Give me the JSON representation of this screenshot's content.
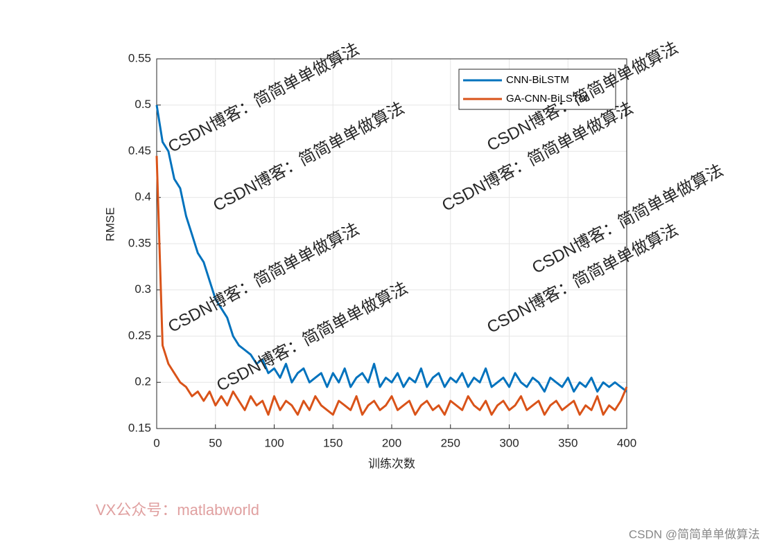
{
  "chart_data": {
    "type": "line",
    "xlabel": "训练次数",
    "ylabel": "RMSE",
    "x": [
      0,
      5,
      10,
      15,
      20,
      25,
      30,
      35,
      40,
      45,
      50,
      55,
      60,
      65,
      70,
      75,
      80,
      85,
      90,
      95,
      100,
      105,
      110,
      115,
      120,
      125,
      130,
      135,
      140,
      145,
      150,
      155,
      160,
      165,
      170,
      175,
      180,
      185,
      190,
      195,
      200,
      205,
      210,
      215,
      220,
      225,
      230,
      235,
      240,
      245,
      250,
      255,
      260,
      265,
      270,
      275,
      280,
      285,
      290,
      295,
      300,
      305,
      310,
      315,
      320,
      325,
      330,
      335,
      340,
      345,
      350,
      355,
      360,
      365,
      370,
      375,
      380,
      385,
      390,
      395,
      400
    ],
    "series": [
      {
        "name": "CNN-BiLSTM",
        "color": "#0072BD",
        "values": [
          0.5,
          0.46,
          0.45,
          0.42,
          0.41,
          0.38,
          0.36,
          0.34,
          0.33,
          0.31,
          0.29,
          0.28,
          0.27,
          0.25,
          0.24,
          0.235,
          0.23,
          0.22,
          0.225,
          0.21,
          0.215,
          0.205,
          0.22,
          0.2,
          0.21,
          0.215,
          0.2,
          0.205,
          0.21,
          0.195,
          0.21,
          0.2,
          0.215,
          0.195,
          0.205,
          0.21,
          0.2,
          0.22,
          0.195,
          0.205,
          0.2,
          0.21,
          0.195,
          0.205,
          0.2,
          0.215,
          0.195,
          0.205,
          0.21,
          0.195,
          0.205,
          0.2,
          0.21,
          0.195,
          0.205,
          0.2,
          0.215,
          0.195,
          0.2,
          0.205,
          0.195,
          0.21,
          0.2,
          0.195,
          0.205,
          0.2,
          0.19,
          0.205,
          0.2,
          0.195,
          0.205,
          0.19,
          0.2,
          0.195,
          0.205,
          0.19,
          0.2,
          0.195,
          0.2,
          0.195,
          0.19
        ]
      },
      {
        "name": "GA-CNN-BiLSTM",
        "color": "#D95319",
        "values": [
          0.445,
          0.24,
          0.22,
          0.21,
          0.2,
          0.195,
          0.185,
          0.19,
          0.18,
          0.19,
          0.175,
          0.185,
          0.175,
          0.19,
          0.18,
          0.17,
          0.185,
          0.175,
          0.18,
          0.165,
          0.185,
          0.17,
          0.18,
          0.175,
          0.165,
          0.18,
          0.17,
          0.185,
          0.175,
          0.17,
          0.165,
          0.18,
          0.175,
          0.17,
          0.185,
          0.165,
          0.175,
          0.18,
          0.17,
          0.175,
          0.185,
          0.17,
          0.175,
          0.18,
          0.165,
          0.175,
          0.18,
          0.17,
          0.175,
          0.165,
          0.18,
          0.175,
          0.17,
          0.185,
          0.175,
          0.17,
          0.18,
          0.165,
          0.175,
          0.18,
          0.17,
          0.175,
          0.185,
          0.17,
          0.175,
          0.18,
          0.165,
          0.175,
          0.18,
          0.17,
          0.175,
          0.18,
          0.165,
          0.175,
          0.17,
          0.185,
          0.165,
          0.175,
          0.17,
          0.18,
          0.195
        ]
      }
    ],
    "xlim": [
      0,
      400
    ],
    "xticks": [
      0,
      50,
      100,
      150,
      200,
      250,
      300,
      350,
      400
    ],
    "ylim": [
      0.15,
      0.55
    ],
    "yticks": [
      0.15,
      0.2,
      0.25,
      0.3,
      0.35,
      0.4,
      0.45,
      0.5,
      0.55
    ],
    "grid": true,
    "legend": "top-right"
  },
  "watermark": "CSDN博客：简简单单做算法",
  "footer_left": "VX公众号：matlabworld",
  "footer_right": "CSDN @简简单单做算法"
}
